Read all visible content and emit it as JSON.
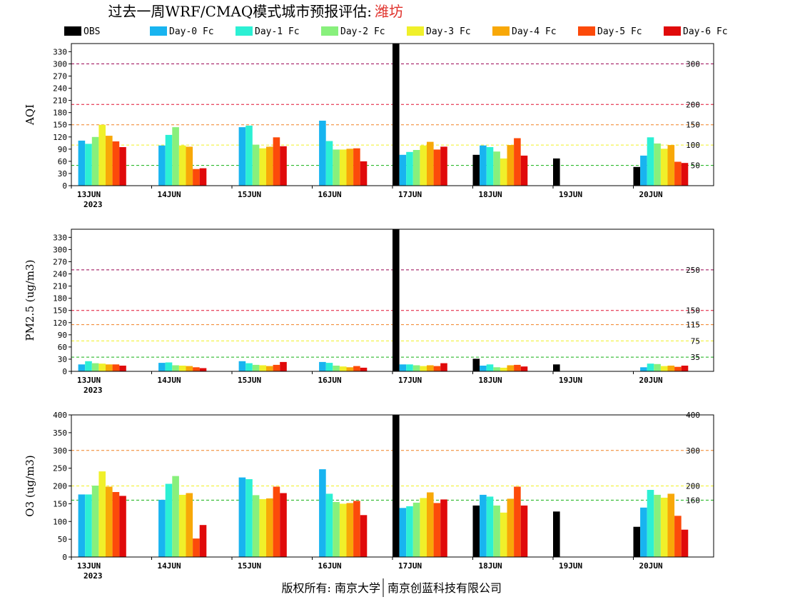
{
  "title": {
    "prefix": "过去一周WRF/CMAQ模式城市预报评估:",
    "city": "潍坊"
  },
  "colors": {
    "obs": "#000000",
    "day0": "#18b4f0",
    "day1": "#2cf0d4",
    "day2": "#88f07c",
    "day3": "#f0f02a",
    "day4": "#f8a808",
    "day5": "#fc4a0a",
    "day6": "#e00a0a",
    "ref_purple": "#990050",
    "ref_red": "#e01030",
    "ref_orange": "#f08020",
    "ref_yellow": "#f0f020",
    "ref_green": "#10b010"
  },
  "legend": [
    "OBS",
    "Day-0 Fc",
    "Day-1 Fc",
    "Day-2 Fc",
    "Day-3 Fc",
    "Day-4 Fc",
    "Day-5 Fc",
    "Day-6 Fc"
  ],
  "chart_data": [
    {
      "type": "bar",
      "ylabel": "AQI",
      "ylim": [
        0,
        350
      ],
      "yticks": [
        0,
        30,
        60,
        90,
        120,
        150,
        180,
        210,
        240,
        270,
        300,
        330
      ],
      "dates": [
        "13JUN",
        "14JUN",
        "15JUN",
        "16JUN",
        "17JUN",
        "18JUN",
        "19JUN",
        "20JUN"
      ],
      "year_label": "2023",
      "ref_lines": [
        {
          "value": 300,
          "label": "300",
          "color": "ref_purple"
        },
        {
          "value": 200,
          "label": "200",
          "color": "ref_red"
        },
        {
          "value": 150,
          "label": "150",
          "color": "ref_orange"
        },
        {
          "value": 100,
          "label": "100",
          "color": "ref_yellow"
        },
        {
          "value": 50,
          "label": "50",
          "color": "ref_green"
        }
      ],
      "series": [
        {
          "name": "OBS",
          "values": [
            null,
            null,
            null,
            null,
            350,
            76,
            67,
            46
          ]
        },
        {
          "name": "Day-0 Fc",
          "values": [
            111,
            99,
            144,
            160,
            76,
            99,
            null,
            74
          ]
        },
        {
          "name": "Day-1 Fc",
          "values": [
            103,
            125,
            148,
            110,
            83,
            95,
            null,
            119
          ]
        },
        {
          "name": "Day-2 Fc",
          "values": [
            120,
            144,
            101,
            89,
            88,
            84,
            null,
            104
          ]
        },
        {
          "name": "Day-3 Fc",
          "values": [
            150,
            99,
            92,
            89,
            99,
            67,
            null,
            91
          ]
        },
        {
          "name": "Day-4 Fc",
          "values": [
            123,
            96,
            96,
            91,
            108,
            100,
            null,
            100
          ]
        },
        {
          "name": "Day-5 Fc",
          "values": [
            109,
            41,
            119,
            92,
            89,
            117,
            null,
            59
          ]
        },
        {
          "name": "Day-6 Fc",
          "values": [
            95,
            43,
            97,
            60,
            96,
            74,
            null,
            56
          ]
        }
      ]
    },
    {
      "type": "bar",
      "ylabel": "PM2.5 (ug/m3)",
      "ylim": [
        0,
        350
      ],
      "yticks": [
        0,
        30,
        60,
        90,
        120,
        150,
        180,
        210,
        240,
        270,
        300,
        330
      ],
      "dates": [
        "13JUN",
        "14JUN",
        "15JUN",
        "16JUN",
        "17JUN",
        "18JUN",
        "19JUN",
        "20JUN"
      ],
      "year_label": "2023",
      "ref_lines": [
        {
          "value": 250,
          "label": "250",
          "color": "ref_purple"
        },
        {
          "value": 150,
          "label": "150",
          "color": "ref_red"
        },
        {
          "value": 115,
          "label": "115",
          "color": "ref_orange"
        },
        {
          "value": 75,
          "label": "75",
          "color": "ref_yellow"
        },
        {
          "value": 35,
          "label": "35",
          "color": "ref_green"
        }
      ],
      "series": [
        {
          "name": "OBS",
          "values": [
            null,
            null,
            null,
            null,
            350,
            31,
            17,
            null
          ]
        },
        {
          "name": "Day-0 Fc",
          "values": [
            17,
            21,
            25,
            23,
            17,
            14,
            null,
            10
          ]
        },
        {
          "name": "Day-1 Fc",
          "values": [
            25,
            22,
            20,
            21,
            17,
            17,
            null,
            19
          ]
        },
        {
          "name": "Day-2 Fc",
          "values": [
            20,
            15,
            16,
            14,
            15,
            10,
            null,
            18
          ]
        },
        {
          "name": "Day-3 Fc",
          "values": [
            19,
            14,
            15,
            12,
            13,
            9,
            null,
            13
          ]
        },
        {
          "name": "Day-4 Fc",
          "values": [
            17,
            13,
            13,
            10,
            15,
            15,
            null,
            14
          ]
        },
        {
          "name": "Day-5 Fc",
          "values": [
            17,
            10,
            16,
            13,
            13,
            16,
            null,
            11
          ]
        },
        {
          "name": "Day-6 Fc",
          "values": [
            14,
            8,
            23,
            9,
            20,
            12,
            null,
            14
          ]
        }
      ]
    },
    {
      "type": "bar",
      "ylabel": "O3 (ug/m3)",
      "ylim": [
        0,
        400
      ],
      "yticks": [
        0,
        50,
        100,
        150,
        200,
        250,
        300,
        350,
        400
      ],
      "dates": [
        "13JUN",
        "14JUN",
        "15JUN",
        "16JUN",
        "17JUN",
        "18JUN",
        "19JUN",
        "20JUN"
      ],
      "year_label": "2023",
      "ref_lines": [
        {
          "value": 400,
          "label": "400",
          "color": "ref_purple"
        },
        {
          "value": 300,
          "label": "300",
          "color": "ref_orange"
        },
        {
          "value": 200,
          "label": "200",
          "color": "ref_yellow"
        },
        {
          "value": 160,
          "label": "160",
          "color": "ref_green"
        }
      ],
      "series": [
        {
          "name": "OBS",
          "values": [
            null,
            null,
            null,
            null,
            400,
            145,
            128,
            85
          ]
        },
        {
          "name": "Day-0 Fc",
          "values": [
            176,
            161,
            224,
            247,
            138,
            175,
            null,
            139
          ]
        },
        {
          "name": "Day-1 Fc",
          "values": [
            176,
            206,
            219,
            178,
            143,
            170,
            null,
            189
          ]
        },
        {
          "name": "Day-2 Fc",
          "values": [
            201,
            228,
            174,
            155,
            153,
            145,
            null,
            175
          ]
        },
        {
          "name": "Day-3 Fc",
          "values": [
            241,
            175,
            163,
            150,
            166,
            125,
            null,
            167
          ]
        },
        {
          "name": "Day-4 Fc",
          "values": [
            198,
            180,
            165,
            152,
            182,
            164,
            null,
            178
          ]
        },
        {
          "name": "Day-5 Fc",
          "values": [
            183,
            52,
            198,
            158,
            152,
            198,
            null,
            116
          ]
        },
        {
          "name": "Day-6 Fc",
          "values": [
            172,
            90,
            180,
            118,
            162,
            145,
            null,
            77
          ]
        }
      ]
    }
  ],
  "footer": {
    "left": "版权所有: 南京大学",
    "right": "南京创蓝科技有限公司"
  }
}
